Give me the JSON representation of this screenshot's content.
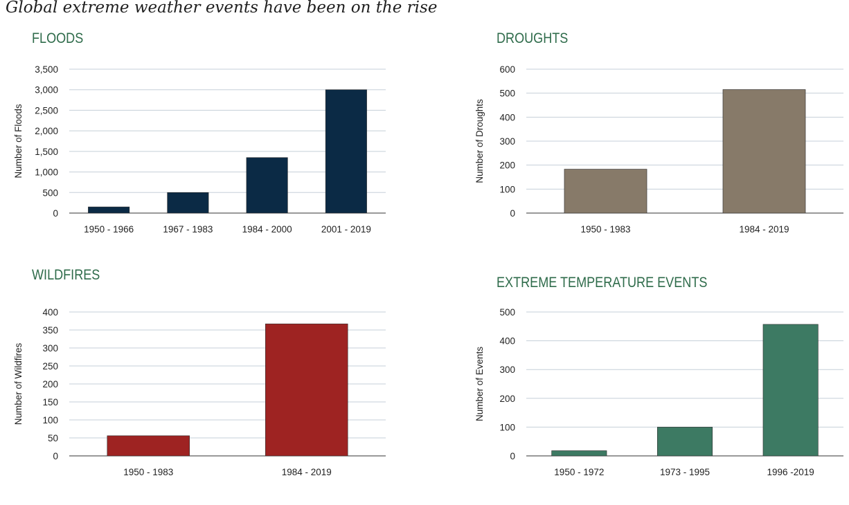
{
  "title": "Global extreme weather events have been on the rise",
  "colors": {
    "floods": "#0b2a45",
    "droughts": "#877a69",
    "wildfires": "#9e2322",
    "temps": "#3d7a63",
    "gridline": "#c5cfd8",
    "heading": "#2e6b4a"
  },
  "chart_data": [
    {
      "type": "bar",
      "title": "FLOODS",
      "ylabel": "Number of Floods",
      "categories": [
        "1950 - 1966",
        "1967 - 1983",
        "1984 - 2000",
        "2001 - 2019"
      ],
      "values": [
        150,
        500,
        1350,
        3000
      ],
      "ylim": [
        0,
        3500
      ],
      "yticks": [
        0,
        500,
        1000,
        1500,
        2000,
        2500,
        3000,
        3500
      ],
      "ytick_labels": [
        "0",
        "500",
        "1,000",
        "1,500",
        "2,000",
        "2,500",
        "3,000",
        "3,500"
      ],
      "grid": true,
      "color": "#0b2a45"
    },
    {
      "type": "bar",
      "title": "DROUGHTS",
      "ylabel": "Number of Droughts",
      "categories": [
        "1950 - 1983",
        "1984 - 2019"
      ],
      "values": [
        183,
        515
      ],
      "ylim": [
        0,
        600
      ],
      "yticks": [
        0,
        100,
        200,
        300,
        400,
        500,
        600
      ],
      "ytick_labels": [
        "0",
        "100",
        "200",
        "300",
        "400",
        "500",
        "600"
      ],
      "grid": true,
      "color": "#877a69"
    },
    {
      "type": "bar",
      "title": "WILDFIRES",
      "ylabel": "Number of Wildfires",
      "categories": [
        "1950 - 1983",
        "1984 - 2019"
      ],
      "values": [
        56,
        367
      ],
      "ylim": [
        0,
        400
      ],
      "yticks": [
        0,
        50,
        100,
        150,
        200,
        250,
        300,
        350,
        400
      ],
      "ytick_labels": [
        "0",
        "50",
        "100",
        "150",
        "200",
        "250",
        "300",
        "350",
        "400"
      ],
      "grid": true,
      "color": "#9e2322"
    },
    {
      "type": "bar",
      "title": "EXTREME TEMPERATURE EVENTS",
      "ylabel": "Number of Events",
      "categories": [
        "1950 - 1972",
        "1973 - 1995",
        "1996 -2019"
      ],
      "values": [
        18,
        100,
        457
      ],
      "ylim": [
        0,
        500
      ],
      "yticks": [
        0,
        100,
        200,
        300,
        400,
        500
      ],
      "ytick_labels": [
        "0",
        "100",
        "200",
        "300",
        "400",
        "500"
      ],
      "grid": true,
      "color": "#3d7a63"
    }
  ]
}
